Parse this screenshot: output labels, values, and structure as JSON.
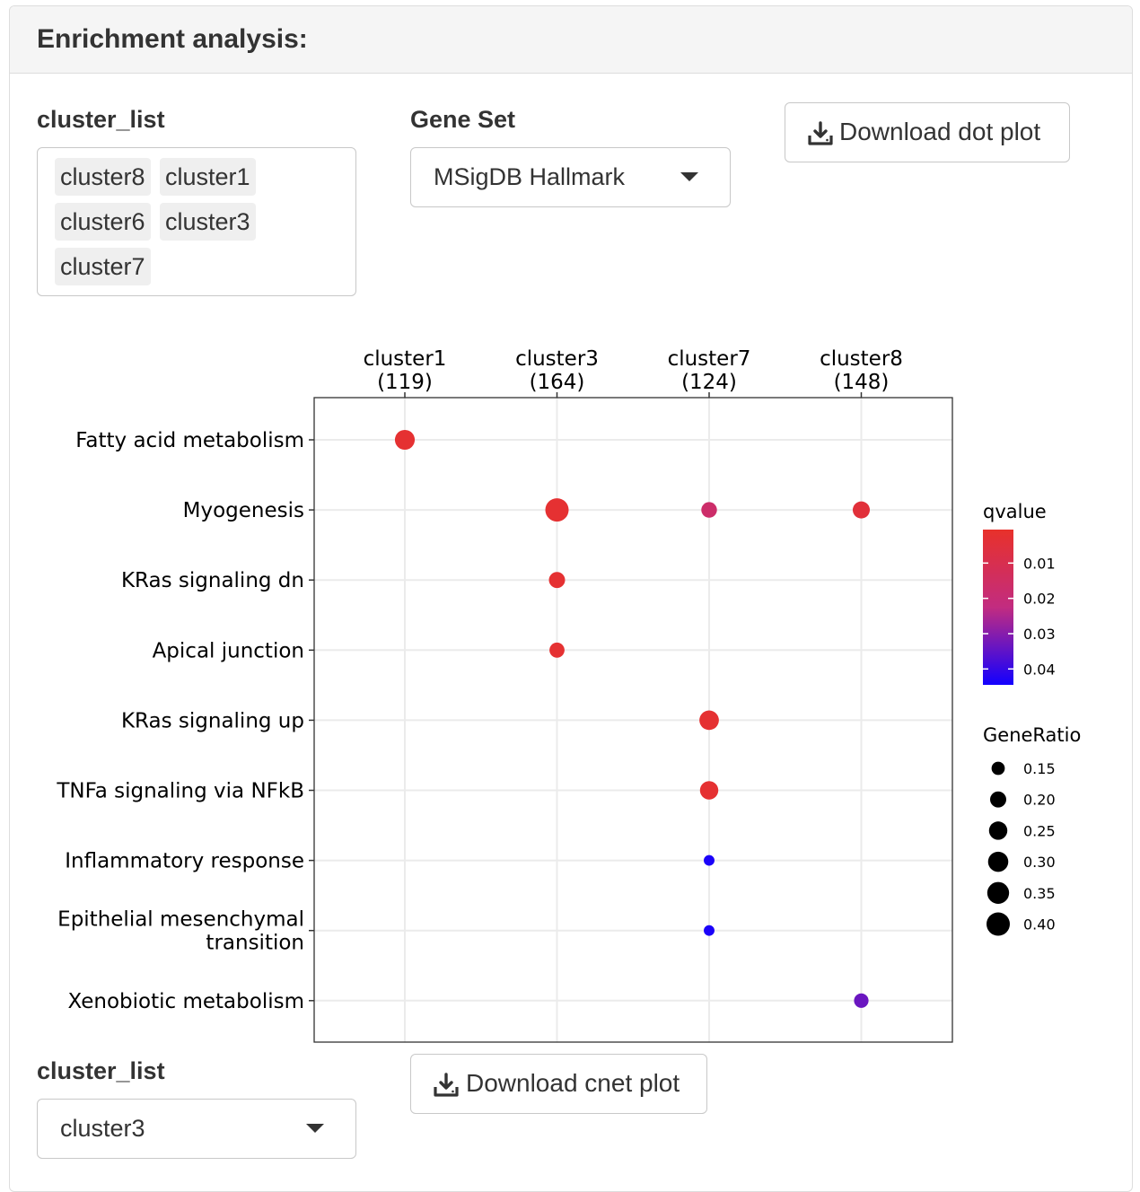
{
  "panel": {
    "title": "Enrichment analysis:"
  },
  "cluster_list_multi": {
    "label": "cluster_list",
    "chips": [
      "cluster8",
      "cluster1",
      "cluster6",
      "cluster3",
      "cluster7"
    ]
  },
  "gene_set": {
    "label": "Gene Set",
    "value": "MSigDB Hallmark"
  },
  "buttons": {
    "download_dot_plot": "Download dot plot",
    "download_cnet_plot": "Download cnet plot"
  },
  "cluster_list_single": {
    "label": "cluster_list",
    "value": "cluster3"
  },
  "icons": {
    "download": "download-icon",
    "caret": "caret-down-icon"
  },
  "chart_data": {
    "type": "scatter",
    "subtype": "dot-plot",
    "columns": [
      {
        "name": "cluster1",
        "count": "(119)"
      },
      {
        "name": "cluster3",
        "count": "(164)"
      },
      {
        "name": "cluster7",
        "count": "(124)"
      },
      {
        "name": "cluster8",
        "count": "(148)"
      }
    ],
    "rows": [
      [
        "Fatty acid metabolism"
      ],
      [
        "Myogenesis"
      ],
      [
        "KRas signaling dn"
      ],
      [
        "Apical junction"
      ],
      [
        "KRas signaling up"
      ],
      [
        "TNFa signaling via NFkB"
      ],
      [
        "Inflammatory response"
      ],
      [
        "Epithelial mesenchymal",
        "transition"
      ],
      [
        "Xenobiotic metabolism"
      ]
    ],
    "points": [
      {
        "row": 0,
        "col": 0,
        "gene_ratio": 0.29,
        "qvalue": 0.002
      },
      {
        "row": 1,
        "col": 1,
        "gene_ratio": 0.4,
        "qvalue": 0.002
      },
      {
        "row": 1,
        "col": 2,
        "gene_ratio": 0.19,
        "qvalue": 0.016
      },
      {
        "row": 1,
        "col": 3,
        "gene_ratio": 0.22,
        "qvalue": 0.004
      },
      {
        "row": 2,
        "col": 1,
        "gene_ratio": 0.2,
        "qvalue": 0.002
      },
      {
        "row": 3,
        "col": 1,
        "gene_ratio": 0.18,
        "qvalue": 0.002
      },
      {
        "row": 4,
        "col": 2,
        "gene_ratio": 0.28,
        "qvalue": 0.002
      },
      {
        "row": 5,
        "col": 2,
        "gene_ratio": 0.25,
        "qvalue": 0.002
      },
      {
        "row": 6,
        "col": 2,
        "gene_ratio": 0.12,
        "qvalue": 0.043
      },
      {
        "row": 7,
        "col": 2,
        "gene_ratio": 0.12,
        "qvalue": 0.043
      },
      {
        "row": 8,
        "col": 3,
        "gene_ratio": 0.17,
        "qvalue": 0.033
      }
    ],
    "legend_color": {
      "title": "qvalue",
      "ticks": [
        "0.01",
        "0.02",
        "0.03",
        "0.04"
      ],
      "tick_values": [
        0.01,
        0.02,
        0.03,
        0.04
      ],
      "range": [
        0.0,
        0.044
      ],
      "color_low_q": "#e8312a",
      "color_mid_q": "#c22c80",
      "color_high_q": "#1300ff"
    },
    "legend_size": {
      "title": "GeneRatio",
      "labels": [
        "0.15",
        "0.20",
        "0.25",
        "0.30",
        "0.35",
        "0.40"
      ],
      "values": [
        0.15,
        0.2,
        0.25,
        0.3,
        0.35,
        0.4
      ]
    },
    "size_range": [
      0.1,
      0.4
    ],
    "grid": true,
    "x_axis_position": "top",
    "legend_position": "right"
  }
}
